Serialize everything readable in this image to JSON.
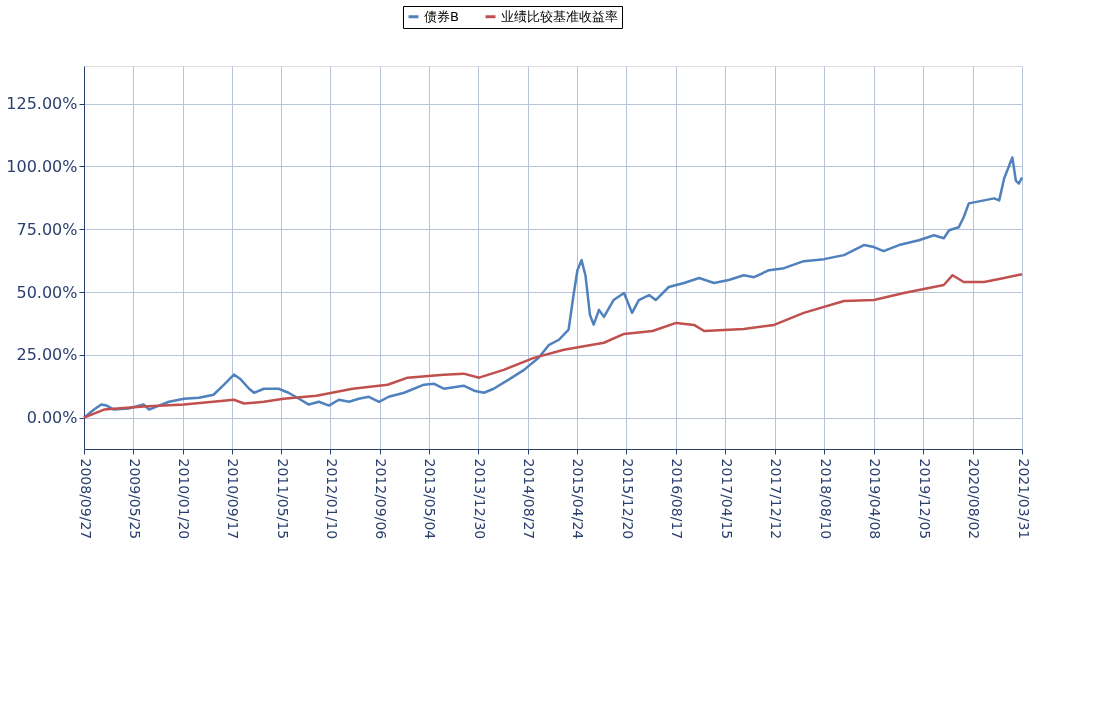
{
  "chart_data": {
    "type": "line",
    "xlim": [
      "2008-09-27",
      "2021-03-31"
    ],
    "xticks": [
      {
        "value": "2008-09-27",
        "label": "2008/09/27"
      },
      {
        "value": "2009-05-25",
        "label": "2009/05/25"
      },
      {
        "value": "2010-01-20",
        "label": "2010/01/20"
      },
      {
        "value": "2010-09-17",
        "label": "2010/09/17"
      },
      {
        "value": "2011-05-15",
        "label": "2011/05/15"
      },
      {
        "value": "2012-01-10",
        "label": "2012/01/10"
      },
      {
        "value": "2012-09-06",
        "label": "2012/09/06"
      },
      {
        "value": "2013-05-04",
        "label": "2013/05/04"
      },
      {
        "value": "2013-12-30",
        "label": "2013/12/30"
      },
      {
        "value": "2014-08-27",
        "label": "2014/08/27"
      },
      {
        "value": "2015-04-24",
        "label": "2015/04/24"
      },
      {
        "value": "2015-12-20",
        "label": "2015/12/20"
      },
      {
        "value": "2016-08-17",
        "label": "2016/08/17"
      },
      {
        "value": "2017-04-15",
        "label": "2017/04/15"
      },
      {
        "value": "2017-12-12",
        "label": "2017/12/12"
      },
      {
        "value": "2018-08-10",
        "label": "2018/08/10"
      },
      {
        "value": "2019-04-08",
        "label": "2019/04/08"
      },
      {
        "value": "2019-12-05",
        "label": "2019/12/05"
      },
      {
        "value": "2020-08-02",
        "label": "2020/08/02"
      },
      {
        "value": "2021-03-31",
        "label": "2021/03/31"
      }
    ],
    "ylim": [
      -12.5,
      140
    ],
    "yticks": [
      {
        "value": 0,
        "label": "0.00%"
      },
      {
        "value": 25,
        "label": "25.00%"
      },
      {
        "value": 50,
        "label": "50.00%"
      },
      {
        "value": 75,
        "label": "75.00%"
      },
      {
        "value": 100,
        "label": "100.00%"
      },
      {
        "value": 125,
        "label": "125.00%"
      }
    ],
    "grid": true,
    "legend": "top",
    "marker": "none",
    "line_style": "solid",
    "series": [
      {
        "name": "债券B",
        "color": "#4f81bd",
        "x": [
          "2008-09-27",
          "2008-11-15",
          "2008-12-20",
          "2009-01-15",
          "2009-02-20",
          "2009-05-01",
          "2009-07-15",
          "2009-08-10",
          "2009-09-27",
          "2009-11-15",
          "2010-01-27",
          "2010-04-10",
          "2010-06-20",
          "2010-08-10",
          "2010-09-27",
          "2010-10-27",
          "2010-12-10",
          "2011-01-03",
          "2011-02-20",
          "2011-05-03",
          "2011-06-20",
          "2011-08-10",
          "2011-09-27",
          "2011-11-15",
          "2012-01-03",
          "2012-02-20",
          "2012-04-10",
          "2012-05-27",
          "2012-07-15",
          "2012-09-03",
          "2012-10-20",
          "2013-01-03",
          "2013-04-10",
          "2013-05-27",
          "2013-07-15",
          "2013-10-20",
          "2013-12-10",
          "2014-01-27",
          "2014-03-15",
          "2014-05-27",
          "2014-08-10",
          "2014-10-20",
          "2014-12-10",
          "2015-01-27",
          "2015-03-15",
          "2015-04-08",
          "2015-04-27",
          "2015-05-17",
          "2015-06-05",
          "2015-06-27",
          "2015-07-15",
          "2015-08-10",
          "2015-09-03",
          "2015-10-20",
          "2015-12-10",
          "2016-01-18",
          "2016-02-20",
          "2016-04-10",
          "2016-05-12",
          "2016-07-15",
          "2016-09-27",
          "2016-12-10",
          "2017-02-20",
          "2017-05-03",
          "2017-07-15",
          "2017-09-03",
          "2017-11-15",
          "2018-01-27",
          "2018-05-03",
          "2018-08-10",
          "2018-11-15",
          "2019-02-20",
          "2019-04-10",
          "2019-05-27",
          "2019-08-10",
          "2019-11-15",
          "2020-01-27",
          "2020-03-15",
          "2020-04-10",
          "2020-05-27",
          "2020-06-20",
          "2020-07-15",
          "2020-09-27",
          "2020-11-15",
          "2020-12-10",
          "2021-01-03",
          "2021-02-12",
          "2021-03-01",
          "2021-03-16",
          "2021-03-31"
        ],
        "values": [
          0,
          3.2,
          5.2,
          4.8,
          3.2,
          3.6,
          5.2,
          3.2,
          4.8,
          6.3,
          7.5,
          7.9,
          9.1,
          13.1,
          17.1,
          15.5,
          11.5,
          9.9,
          11.5,
          11.5,
          9.9,
          7.5,
          5.2,
          6.3,
          4.8,
          7.1,
          6.3,
          7.5,
          8.3,
          6.3,
          8.3,
          9.9,
          13.1,
          13.5,
          11.5,
          12.7,
          10.7,
          9.9,
          11.5,
          15.1,
          19.0,
          23.8,
          29.0,
          31.0,
          35.0,
          48.8,
          58.7,
          62.7,
          56.7,
          40.9,
          37.0,
          42.9,
          40.1,
          46.8,
          49.6,
          41.7,
          46.8,
          48.8,
          46.8,
          52.0,
          53.6,
          55.6,
          53.6,
          54.8,
          56.7,
          55.9,
          58.7,
          59.5,
          62.3,
          63.1,
          64.7,
          68.7,
          67.9,
          66.3,
          68.7,
          70.6,
          72.6,
          71.4,
          74.6,
          75.8,
          79.8,
          85.3,
          86.5,
          87.3,
          86.5,
          95.2,
          103.6,
          94.4,
          93.2,
          95.6
        ]
      },
      {
        "name": "业绩比较基准收益率",
        "color": "#c0504d",
        "x": [
          "2008-09-27",
          "2009-01-03",
          "2009-07-15",
          "2010-01-27",
          "2010-09-27",
          "2010-11-15",
          "2011-02-20",
          "2011-05-27",
          "2011-11-03",
          "2012-04-27",
          "2012-10-15",
          "2013-01-20",
          "2013-07-15",
          "2013-10-20",
          "2014-01-03",
          "2014-05-03",
          "2014-09-27",
          "2015-02-20",
          "2015-09-03",
          "2015-12-10",
          "2016-04-27",
          "2016-08-20",
          "2016-11-15",
          "2017-01-03",
          "2017-04-10",
          "2017-07-15",
          "2017-12-10",
          "2018-05-03",
          "2018-11-15",
          "2019-04-10",
          "2019-09-03",
          "2020-03-15",
          "2020-04-27",
          "2020-06-20",
          "2020-09-27",
          "2021-01-03",
          "2021-03-31"
        ],
        "values": [
          0,
          3.2,
          4.4,
          5.2,
          7.1,
          5.6,
          6.3,
          7.5,
          8.7,
          11.5,
          13.1,
          15.9,
          17.1,
          17.5,
          15.9,
          19.0,
          23.8,
          27.0,
          29.8,
          33.3,
          34.5,
          37.7,
          36.9,
          34.5,
          34.9,
          35.3,
          36.9,
          41.7,
          46.4,
          46.8,
          49.6,
          52.8,
          56.7,
          54.0,
          54.0,
          55.6,
          57.1
        ]
      }
    ]
  }
}
